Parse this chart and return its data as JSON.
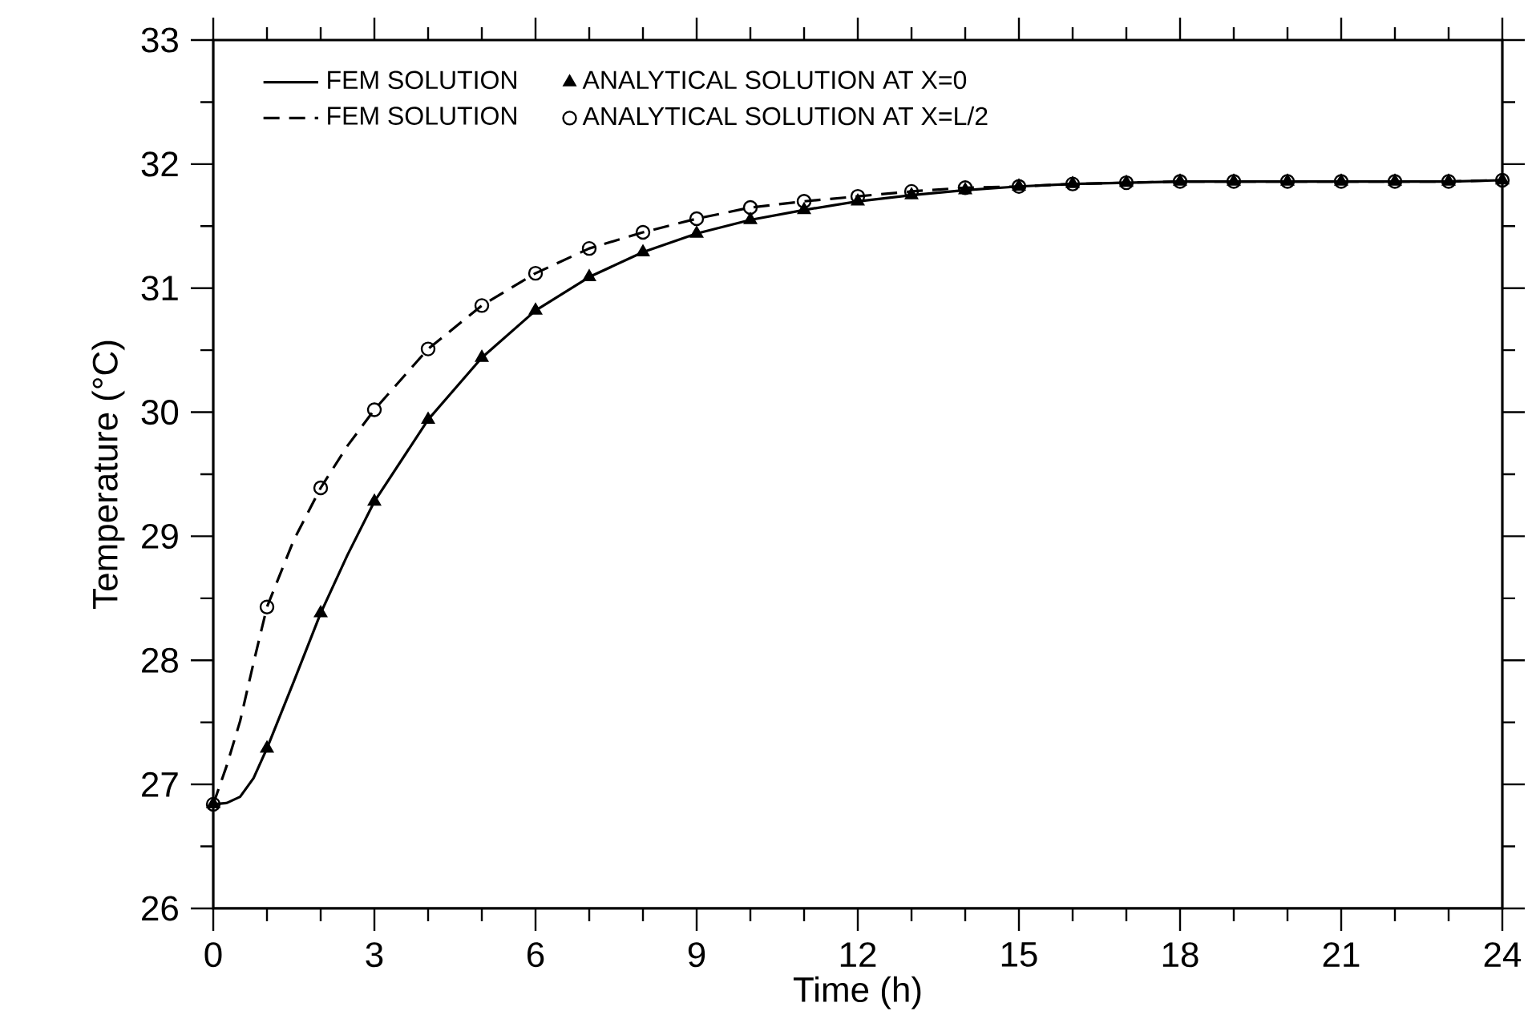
{
  "chart_data": {
    "type": "line",
    "xlabel": "Time (h)",
    "ylabel": "Temperature (°C)",
    "xlim": [
      0,
      24
    ],
    "ylim": [
      26,
      33
    ],
    "xticks": [
      0,
      {
        "value": 1,
        "label": null
      },
      {
        "value": 2,
        "label": null
      },
      3,
      {
        "value": 4,
        "label": null
      },
      {
        "value": 5,
        "label": null
      },
      6,
      {
        "value": 7,
        "label": null
      },
      {
        "value": 8,
        "label": null
      },
      9,
      {
        "value": 10,
        "label": null
      },
      {
        "value": 11,
        "label": null
      },
      12,
      {
        "value": 13,
        "label": null
      },
      {
        "value": 14,
        "label": null
      },
      15,
      {
        "value": 16,
        "label": null
      },
      {
        "value": 17,
        "label": null
      },
      18,
      {
        "value": 19,
        "label": null
      },
      {
        "value": 20,
        "label": null
      },
      21,
      {
        "value": 22,
        "label": null
      },
      {
        "value": 23,
        "label": null
      },
      24
    ],
    "yticks": [
      26,
      {
        "value": 26.5,
        "label": null
      },
      27,
      {
        "value": 27.5,
        "label": null
      },
      28,
      {
        "value": 28.5,
        "label": null
      },
      29,
      {
        "value": 29.5,
        "label": null
      },
      30,
      {
        "value": 30.5,
        "label": null
      },
      31,
      {
        "value": 31.5,
        "label": null
      },
      32,
      {
        "value": 32.5,
        "label": null
      },
      33
    ],
    "legend": "top left",
    "series": [
      {
        "name": "FEM SOLUTION",
        "color": "#000000",
        "line_style": "solid",
        "marker": "none",
        "x": [
          0,
          0.25,
          0.5,
          0.75,
          1,
          1.5,
          2,
          2.5,
          3,
          4,
          5,
          6,
          7,
          8,
          9,
          10,
          11,
          12,
          13,
          14,
          15,
          16,
          17,
          18,
          19,
          20,
          21,
          22,
          23,
          24
        ],
        "values": [
          26.84,
          26.85,
          26.9,
          27.05,
          27.29,
          27.83,
          28.38,
          28.85,
          29.28,
          29.94,
          30.44,
          30.82,
          31.09,
          31.29,
          31.44,
          31.55,
          31.63,
          31.7,
          31.75,
          31.79,
          31.82,
          31.84,
          31.85,
          31.86,
          31.86,
          31.86,
          31.86,
          31.86,
          31.86,
          31.87
        ]
      },
      {
        "name": "ANALYTICAL SOLUTION AT X=0",
        "type": "scatter",
        "color": "#000000",
        "marker": "triangle",
        "x": [
          0,
          1,
          2,
          3,
          4,
          5,
          6,
          7,
          8,
          9,
          10,
          11,
          12,
          13,
          14,
          15,
          16,
          17,
          18,
          19,
          20,
          21,
          22,
          23,
          24
        ],
        "values": [
          26.84,
          27.29,
          28.38,
          29.28,
          29.94,
          30.44,
          30.82,
          31.09,
          31.29,
          31.44,
          31.55,
          31.63,
          31.7,
          31.75,
          31.79,
          31.82,
          31.84,
          31.85,
          31.86,
          31.86,
          31.86,
          31.86,
          31.86,
          31.86,
          31.87
        ]
      },
      {
        "name": "FEM SOLUTION",
        "color": "#000000",
        "line_style": "dashed",
        "marker": "none",
        "x": [
          0,
          0.25,
          0.5,
          0.75,
          1,
          1.5,
          2,
          2.5,
          3,
          4,
          5,
          6,
          7,
          8,
          9,
          10,
          11,
          12,
          13,
          14,
          15,
          16,
          17,
          18,
          19,
          20,
          21,
          22,
          23,
          24
        ],
        "values": [
          26.84,
          27.15,
          27.51,
          27.98,
          28.43,
          28.97,
          29.39,
          29.73,
          30.02,
          30.51,
          30.86,
          31.12,
          31.32,
          31.45,
          31.56,
          31.65,
          31.7,
          31.74,
          31.78,
          31.81,
          31.82,
          31.84,
          31.85,
          31.86,
          31.86,
          31.86,
          31.86,
          31.86,
          31.86,
          31.87
        ]
      },
      {
        "name": "ANALYTICAL SOLUTION AT X=L/2",
        "type": "scatter",
        "color": "#000000",
        "marker": "circle",
        "x": [
          0,
          1,
          2,
          3,
          4,
          5,
          6,
          7,
          8,
          9,
          10,
          11,
          12,
          13,
          14,
          15,
          16,
          17,
          18,
          19,
          20,
          21,
          22,
          23,
          24
        ],
        "values": [
          26.84,
          28.43,
          29.39,
          30.02,
          30.51,
          30.86,
          31.12,
          31.32,
          31.45,
          31.56,
          31.65,
          31.7,
          31.74,
          31.78,
          31.81,
          31.82,
          31.84,
          31.85,
          31.86,
          31.86,
          31.86,
          31.86,
          31.86,
          31.86,
          31.87
        ]
      }
    ]
  }
}
